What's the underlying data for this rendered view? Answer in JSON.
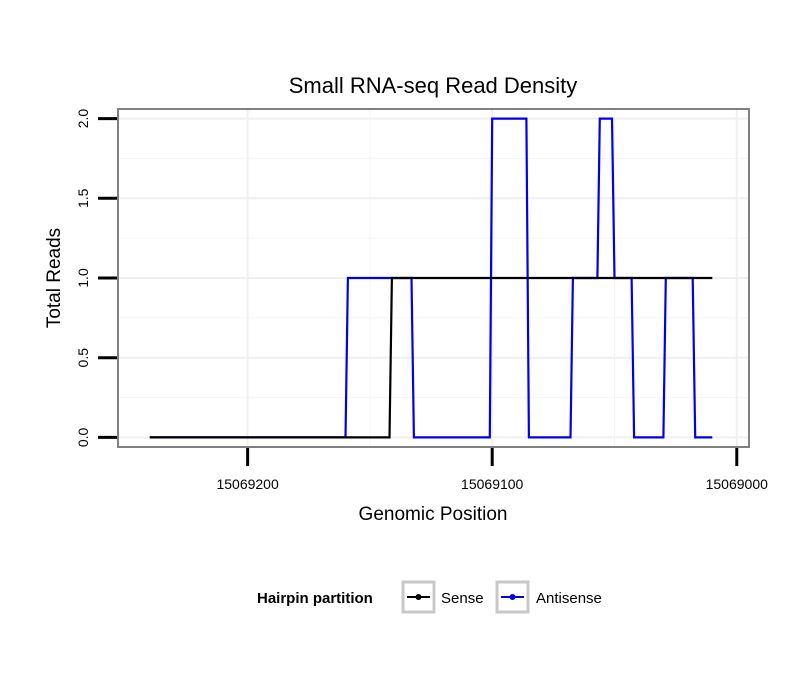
{
  "chart_data": {
    "type": "line",
    "title": "Small RNA-seq Read Density",
    "xlabel": "Genomic Position",
    "ylabel": "Total Reads",
    "x_reversed": true,
    "xlim": [
      15069253,
      15068995
    ],
    "ylim": [
      -0.06,
      2.06
    ],
    "x_ticks": [
      15069200,
      15069100,
      15069000
    ],
    "x_tick_labels": [
      "15069200",
      "15069100",
      "15069000"
    ],
    "y_ticks": [
      0,
      0.5,
      1,
      1.5,
      2
    ],
    "y_tick_labels": [
      "0.0",
      "0.5",
      "1.0",
      "1.5",
      "2.0"
    ],
    "grid": true,
    "legend": {
      "title": "Hairpin partition",
      "placement": "bottom",
      "entries": [
        {
          "name": "Sense",
          "color": "#000000"
        },
        {
          "name": "Antisense",
          "color": "#0000ee"
        }
      ]
    },
    "series": [
      {
        "name": "Sense",
        "color": "#000000",
        "x": [
          15069240,
          15069142,
          15069141,
          15069010
        ],
        "y": [
          0,
          0,
          1,
          1
        ]
      },
      {
        "name": "Antisense",
        "color": "#0000ee",
        "x": [
          15069240,
          15069160,
          15069159,
          15069133,
          15069132,
          15069101,
          15069100,
          15069086,
          15069085,
          15069068,
          15069067,
          15069057,
          15069056,
          15069051,
          15069050,
          15069043,
          15069042,
          15069030,
          15069029,
          15069018,
          15069017,
          15069010
        ],
        "y": [
          0,
          0,
          1,
          1,
          0,
          0,
          2,
          2,
          0,
          0,
          1,
          1,
          2,
          2,
          1,
          1,
          0,
          0,
          1,
          1,
          0,
          0
        ]
      }
    ]
  }
}
